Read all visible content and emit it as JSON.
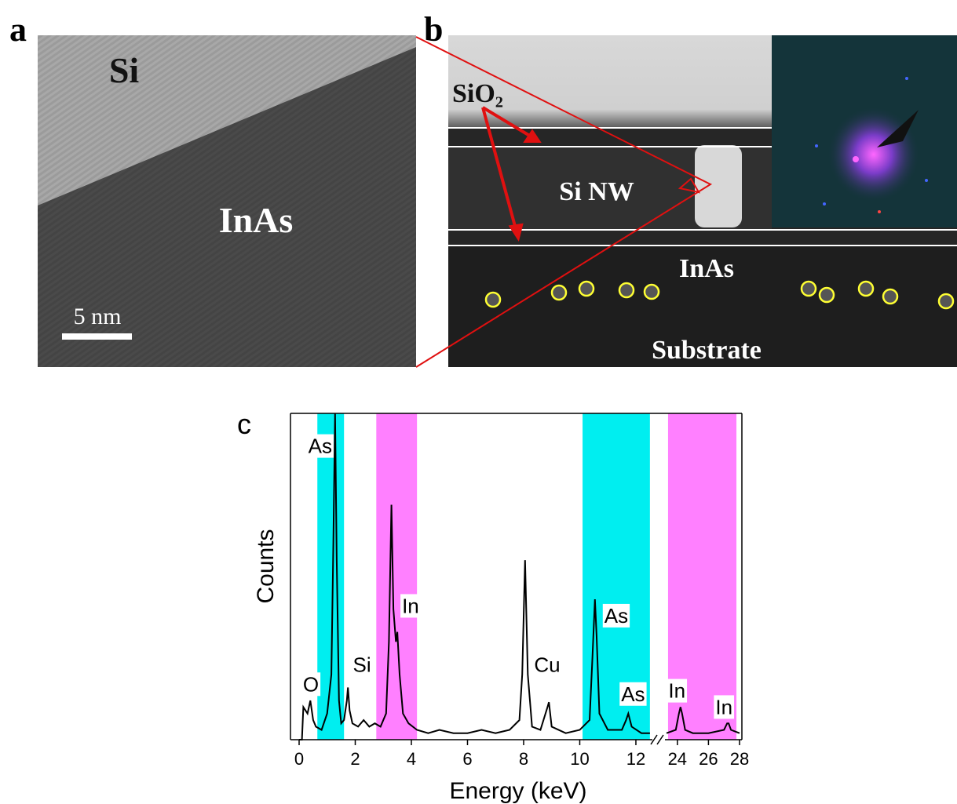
{
  "panels": {
    "a": {
      "letter": "a",
      "labels": [
        "Si",
        "InAs"
      ],
      "scale_bar": "5 nm"
    },
    "b": {
      "letter": "b",
      "labels": [
        "SiO₂",
        "Si NW",
        "InAs",
        "Substrate"
      ]
    }
  },
  "chart_data": {
    "type": "line",
    "letter": "c",
    "x_label": "Energy (keV)",
    "y_label": "Counts",
    "xlim": [
      0,
      28
    ],
    "xbreak": [
      12.7,
      23.1
    ],
    "ylim": [
      0,
      100
    ],
    "xticks": [
      0,
      2,
      4,
      6,
      8,
      10,
      12,
      24,
      26,
      28
    ],
    "bands": [
      {
        "range": [
          0.65,
          1.6
        ],
        "color": "#00eef0"
      },
      {
        "range": [
          2.75,
          4.2
        ],
        "color": "#ff80ff"
      },
      {
        "range": [
          10.1,
          12.5
        ],
        "color": "#00eef0"
      },
      {
        "range": [
          23.4,
          27.8
        ],
        "color": "#ff80ff"
      }
    ],
    "series": [
      {
        "color": "#000000",
        "x": [
          0,
          0.1,
          0.15,
          0.3,
          0.4,
          0.5,
          0.6,
          0.8,
          1.0,
          1.15,
          1.22,
          1.28,
          1.34,
          1.42,
          1.5,
          1.6,
          1.7,
          1.74,
          1.8,
          1.9,
          2.1,
          2.3,
          2.5,
          2.7,
          2.9,
          3.1,
          3.2,
          3.29,
          3.36,
          3.45,
          3.5,
          3.58,
          3.7,
          3.9,
          4.2,
          4.6,
          5,
          5.5,
          6,
          6.5,
          7,
          7.5,
          7.85,
          7.95,
          8.05,
          8.15,
          8.3,
          8.6,
          8.85,
          8.9,
          9.0,
          9.5,
          10,
          10.35,
          10.45,
          10.54,
          10.6,
          10.7,
          11,
          11.5,
          11.65,
          11.73,
          11.85,
          12.2,
          12.5,
          18,
          23.3,
          23.9,
          24.1,
          24.2,
          24.3,
          24.5,
          25,
          26,
          27,
          27.2,
          27.3,
          27.45,
          28
        ],
        "values": [
          0,
          0,
          10,
          8,
          12,
          6,
          4,
          3,
          8,
          20,
          60,
          100,
          55,
          12,
          5,
          6,
          12,
          16,
          9,
          5,
          4,
          6,
          4,
          5,
          4,
          8,
          30,
          72,
          40,
          30,
          33,
          20,
          8,
          5,
          3,
          2,
          3,
          2,
          2,
          3,
          2,
          3,
          6,
          20,
          55,
          20,
          4,
          3,
          10,
          11.5,
          4,
          2,
          3,
          6,
          25,
          43,
          32,
          8,
          3,
          3,
          6,
          8,
          4,
          2,
          2,
          null,
          2,
          3,
          8,
          10,
          8,
          3,
          2,
          2,
          3,
          5,
          5,
          3,
          2
        ]
      }
    ],
    "annotations": [
      {
        "text": "O",
        "x": 0.42,
        "y": 17
      },
      {
        "text": "As",
        "x": 0.75,
        "y": 90
      },
      {
        "text": "Si",
        "x": 2.24,
        "y": 23
      },
      {
        "text": "In",
        "x": 3.97,
        "y": 41
      },
      {
        "text": "Cu",
        "x": 8.84,
        "y": 23
      },
      {
        "text": "As",
        "x": 11.3,
        "y": 38
      },
      {
        "text": "As",
        "x": 11.9,
        "y": 14
      },
      {
        "text": "In",
        "x": 23.97,
        "y": 15
      },
      {
        "text": "In",
        "x": 27.0,
        "y": 10
      }
    ]
  }
}
